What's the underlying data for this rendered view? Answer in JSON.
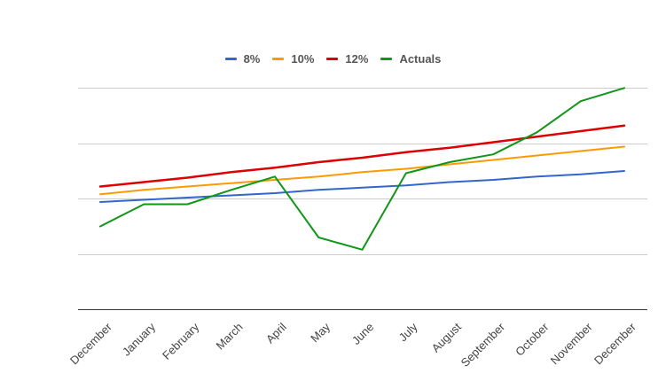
{
  "chart_data": {
    "type": "line",
    "categories": [
      "December",
      "January",
      "February",
      "March",
      "April",
      "May",
      "June",
      "July",
      "August",
      "September",
      "October",
      "November",
      "December"
    ],
    "series": [
      {
        "name": "8%",
        "color": "#3366cc",
        "stroke_width": 2,
        "values": [
          -0.3,
          -0.1,
          0.1,
          0.3,
          0.5,
          0.8,
          1.0,
          1.2,
          1.5,
          1.7,
          2.0,
          2.2,
          2.5
        ]
      },
      {
        "name": "10%",
        "color": "#ff9900",
        "stroke_width": 2,
        "values": [
          0.4,
          0.8,
          1.1,
          1.4,
          1.7,
          2.0,
          2.4,
          2.7,
          3.1,
          3.5,
          3.9,
          4.3,
          4.7
        ]
      },
      {
        "name": "12%",
        "color": "#dc0000",
        "stroke_width": 2.5,
        "values": [
          1.1,
          1.5,
          1.9,
          2.4,
          2.8,
          3.3,
          3.7,
          4.2,
          4.6,
          5.1,
          5.6,
          6.1,
          6.6
        ]
      },
      {
        "name": "Actuals",
        "color": "#109618",
        "stroke_width": 2,
        "values": [
          -2.5,
          -0.5,
          -0.5,
          0.8,
          2.0,
          -3.5,
          -4.6,
          2.3,
          3.3,
          4.0,
          6.0,
          8.8,
          10.0
        ]
      }
    ],
    "ylim": [
      -9.9,
      10.1
    ],
    "gridlines": [
      -10,
      -5,
      0,
      5,
      10
    ],
    "grid": true,
    "legend_position": "top",
    "title": "",
    "xlabel": "",
    "ylabel": ""
  }
}
